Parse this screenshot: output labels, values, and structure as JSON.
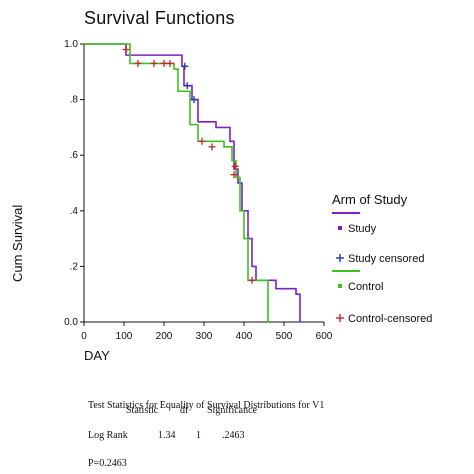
{
  "title": "Survival Functions",
  "chart_data": {
    "type": "line",
    "xlabel": "DAY",
    "ylabel": "Cum Survival",
    "xlim": [
      0,
      600
    ],
    "ylim": [
      0,
      1.0
    ],
    "xticks": [
      "0",
      "100",
      "200",
      "300",
      "400",
      "500",
      "600"
    ],
    "yticks": [
      "0.0",
      ".2",
      ".4",
      ".6",
      ".8",
      "1.0"
    ],
    "legend_title": "Arm of Study",
    "legend_position": "right",
    "legend": [
      "Study",
      "Study censored",
      "Control",
      "Control-censored"
    ],
    "series": [
      {
        "name": "Study",
        "color": "#7b22c8",
        "steps": [
          [
            0,
            1.0
          ],
          [
            105,
            0.96
          ],
          [
            245,
            0.92
          ],
          [
            250,
            0.85
          ],
          [
            270,
            0.8
          ],
          [
            285,
            0.72
          ],
          [
            330,
            0.7
          ],
          [
            365,
            0.65
          ],
          [
            375,
            0.55
          ],
          [
            385,
            0.5
          ],
          [
            395,
            0.4
          ],
          [
            410,
            0.3
          ],
          [
            420,
            0.2
          ],
          [
            430,
            0.15
          ],
          [
            480,
            0.12
          ],
          [
            530,
            0.1
          ],
          [
            540,
            0.0
          ]
        ],
        "censored": [
          [
            252,
            0.92
          ],
          [
            258,
            0.85
          ],
          [
            275,
            0.8
          ]
        ]
      },
      {
        "name": "Control",
        "color": "#3fc21b",
        "steps": [
          [
            0,
            1.0
          ],
          [
            115,
            0.93
          ],
          [
            225,
            0.91
          ],
          [
            235,
            0.83
          ],
          [
            265,
            0.71
          ],
          [
            285,
            0.65
          ],
          [
            350,
            0.63
          ],
          [
            370,
            0.58
          ],
          [
            380,
            0.52
          ],
          [
            390,
            0.4
          ],
          [
            400,
            0.3
          ],
          [
            410,
            0.15
          ],
          [
            460,
            0.0
          ]
        ],
        "censored": [
          [
            105,
            0.98
          ],
          [
            135,
            0.93
          ],
          [
            175,
            0.93
          ],
          [
            200,
            0.93
          ],
          [
            215,
            0.93
          ],
          [
            295,
            0.65
          ],
          [
            320,
            0.63
          ],
          [
            375,
            0.53
          ],
          [
            378,
            0.56
          ],
          [
            420,
            0.15
          ]
        ]
      }
    ]
  },
  "stats": {
    "title": "Test Statistics for Equality of Survival Distributions for V1",
    "headers": [
      "Statistic",
      "df",
      "Significance"
    ],
    "row_label": "Log Rank",
    "values": [
      "1.34",
      "1",
      ".2463"
    ],
    "pvalue": "P=0.2463"
  }
}
